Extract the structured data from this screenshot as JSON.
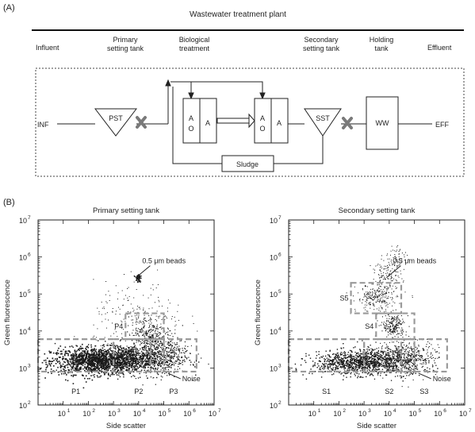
{
  "panel_a": {
    "label": "(A)",
    "title": "Wastewater treatment plant",
    "stages": [
      {
        "line1": "Influent",
        "line2": ""
      },
      {
        "line1": "Primary",
        "line2": "setting tank"
      },
      {
        "line1": "Biological",
        "line2": "treatment"
      },
      {
        "line1": "Secondary",
        "line2": "setting tank"
      },
      {
        "line1": "Holding",
        "line2": "tank"
      },
      {
        "line1": "Effluent",
        "line2": ""
      }
    ],
    "nodes": {
      "inf": "INF",
      "pst": "PST",
      "sst": "SST",
      "ww": "WW",
      "eff": "EFF",
      "sludge": "Sludge",
      "reactor_a": "A",
      "reactor_o": "O"
    },
    "colors": {
      "sample_mark": "#7a7a7a",
      "box": "#222222"
    }
  },
  "panel_b": {
    "label": "(B)",
    "colors": {
      "dots": "#1a1a1a",
      "gate": "#9a9a9a"
    }
  },
  "chart_data": [
    {
      "type": "scatter",
      "title": "Primary setting tank",
      "xlabel": "Side scatter",
      "ylabel": "Green fluorescence",
      "x_scale": "log",
      "y_scale": "log",
      "xlim": [
        1,
        10000000.0
      ],
      "ylim": [
        100.0,
        10000000.0
      ],
      "x_ticks": [
        "10",
        "10",
        "10",
        "10",
        "10",
        "10",
        "10"
      ],
      "x_tick_exp": [
        "1",
        "2",
        "3",
        "4",
        "5",
        "6",
        "7"
      ],
      "y_ticks": [
        "10",
        "10",
        "10",
        "10",
        "10",
        "10"
      ],
      "y_tick_exp": [
        "2",
        "3",
        "4",
        "5",
        "6",
        "7"
      ],
      "gates": [
        {
          "name": "P1",
          "x": [
            1,
            1000
          ],
          "y": [
            800,
            6000
          ]
        },
        {
          "name": "P2",
          "x": [
            1000,
            100000
          ],
          "y": [
            800,
            6000
          ]
        },
        {
          "name": "P3",
          "x": [
            30000,
            2000000
          ],
          "y": [
            800,
            6000
          ]
        },
        {
          "name": "P4",
          "x": [
            3000,
            100000
          ],
          "y": [
            6000,
            30000
          ]
        }
      ],
      "annotations": [
        {
          "text": "0.5 μm beads",
          "x": 12000,
          "y": 250000.0
        },
        {
          "text": "Noise",
          "x": 300000,
          "y": 800
        }
      ],
      "clusters": [
        {
          "desc": "beads",
          "x": 9000,
          "y": 300000.0
        },
        {
          "desc": "P4 population",
          "x": 25000,
          "y": 10000
        }
      ],
      "legend": "none"
    },
    {
      "type": "scatter",
      "title": "Secondary setting tank",
      "xlabel": "Side scatter",
      "ylabel": "Green fluorescence",
      "x_scale": "log",
      "y_scale": "log",
      "xlim": [
        1,
        10000000.0
      ],
      "ylim": [
        100.0,
        10000000.0
      ],
      "x_ticks": [
        "10",
        "10",
        "10",
        "10",
        "10",
        "10",
        "10"
      ],
      "x_tick_exp": [
        "1",
        "2",
        "3",
        "4",
        "5",
        "6",
        "7"
      ],
      "y_ticks": [
        "10",
        "10",
        "10",
        "10",
        "10",
        "10"
      ],
      "y_tick_exp": [
        "2",
        "3",
        "4",
        "5",
        "6",
        "7"
      ],
      "gates": [
        {
          "name": "S1",
          "x": [
            1,
            1000
          ],
          "y": [
            800,
            6000
          ]
        },
        {
          "name": "S2",
          "x": [
            1000,
            100000
          ],
          "y": [
            800,
            6000
          ]
        },
        {
          "name": "S3",
          "x": [
            30000,
            2000000
          ],
          "y": [
            800,
            6000
          ]
        },
        {
          "name": "S4",
          "x": [
            3000,
            100000
          ],
          "y": [
            6000,
            30000
          ]
        },
        {
          "name": "S5",
          "x": [
            300,
            30000
          ],
          "y": [
            30000,
            200000
          ]
        }
      ],
      "annotations": [
        {
          "text": "0.5 μm beads",
          "x": 12000,
          "y": 250000.0
        },
        {
          "text": "Noise",
          "x": 300000,
          "y": 800
        }
      ],
      "clusters": [
        {
          "desc": "beads",
          "x": 8000,
          "y": 300000.0
        },
        {
          "desc": "S4 population",
          "x": 15000,
          "y": 15000
        }
      ],
      "legend": "none"
    }
  ]
}
